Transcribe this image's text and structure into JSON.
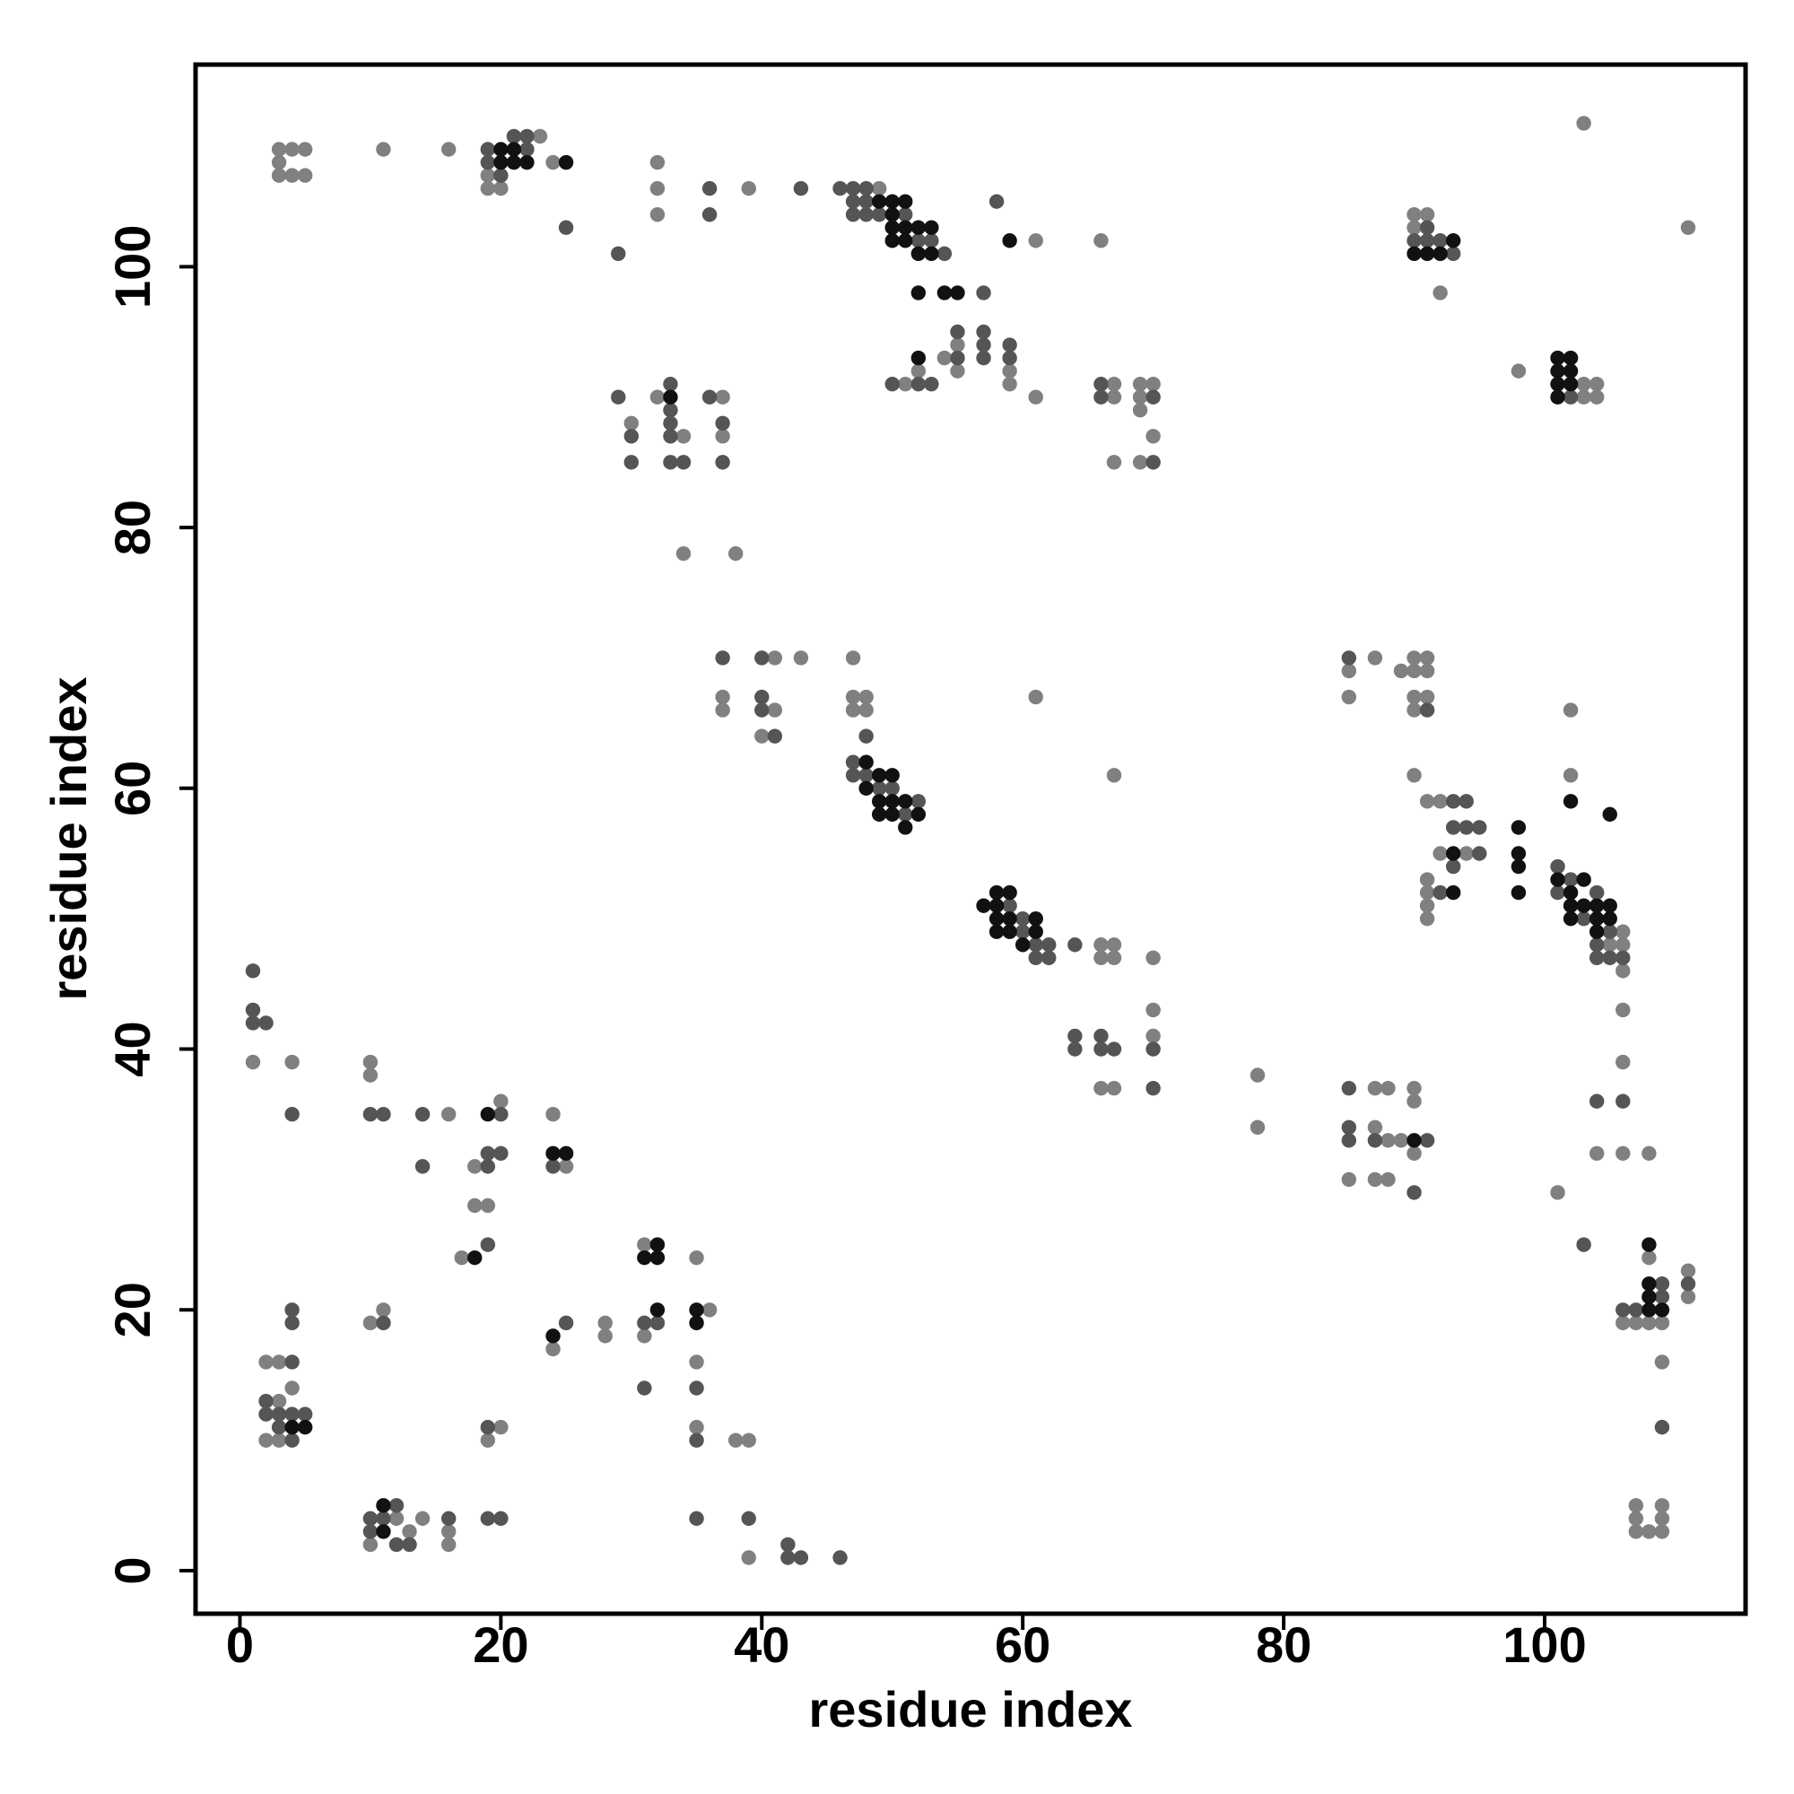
{
  "chart_data": {
    "type": "scatter",
    "x_label": "residue index",
    "y_label": "residue index",
    "xlim": [
      -3.4,
      115.4
    ],
    "ylim": [
      -3.3,
      115.5
    ],
    "xticks": [
      0,
      20,
      40,
      60,
      80,
      100
    ],
    "yticks": [
      0,
      20,
      40,
      60,
      80,
      100
    ],
    "grid": false,
    "series": [
      {
        "color": "#808080",
        "x": [
          3,
          4,
          5,
          3,
          3,
          4,
          5,
          11,
          16,
          19,
          19,
          20,
          23,
          24,
          32,
          32,
          32,
          39,
          49,
          61,
          66,
          54,
          55,
          55,
          59,
          59,
          52,
          51,
          61,
          67,
          67,
          69,
          69,
          69,
          70,
          70,
          67,
          69,
          30,
          32,
          34,
          37,
          37,
          34,
          38,
          90,
          90,
          91,
          92,
          103,
          111,
          98,
          103,
          103,
          104,
          104,
          37,
          37,
          40,
          41,
          41,
          43,
          47,
          47,
          47,
          48,
          48,
          61,
          67,
          66,
          66,
          67,
          67,
          70,
          66,
          67,
          70,
          70,
          78,
          78,
          85,
          85,
          87,
          89,
          90,
          90,
          90,
          90,
          91,
          91,
          91,
          90,
          91,
          92,
          94,
          92,
          91,
          91,
          91,
          91,
          102,
          102,
          105,
          106,
          106,
          106,
          106,
          106,
          104,
          106,
          108,
          85,
          87,
          87,
          87,
          88,
          88,
          88,
          89,
          90,
          90,
          90,
          1,
          4,
          10,
          10,
          16,
          18,
          20,
          18,
          19,
          17,
          24,
          25,
          31,
          35,
          36,
          31,
          35,
          35,
          38,
          39,
          39,
          24,
          28,
          28,
          10,
          11,
          2,
          3,
          3,
          4,
          2,
          3,
          20,
          19,
          12,
          13,
          10,
          14,
          16,
          16,
          101,
          108,
          106,
          107,
          108,
          109,
          111,
          111,
          109,
          107,
          107,
          107,
          108,
          109,
          109,
          109
        ],
        "y": [
          109,
          109,
          109,
          108,
          107,
          107,
          107,
          109,
          109,
          107,
          106,
          106,
          110,
          108,
          108,
          106,
          104,
          106,
          106,
          102,
          102,
          93,
          94,
          92,
          92,
          91,
          92,
          91,
          90,
          91,
          90,
          91,
          90,
          89,
          91,
          87,
          85,
          85,
          88,
          90,
          87,
          90,
          87,
          78,
          78,
          104,
          103,
          104,
          98,
          111,
          103,
          92,
          91,
          90,
          91,
          90,
          67,
          66,
          64,
          70,
          66,
          70,
          70,
          67,
          66,
          67,
          66,
          67,
          61,
          48,
          47,
          48,
          47,
          47,
          37,
          37,
          43,
          41,
          38,
          34,
          69,
          67,
          70,
          69,
          70,
          69,
          67,
          66,
          70,
          69,
          67,
          61,
          59,
          59,
          55,
          55,
          53,
          52,
          51,
          50,
          66,
          61,
          48,
          49,
          48,
          46,
          43,
          39,
          32,
          32,
          32,
          30,
          37,
          34,
          30,
          37,
          33,
          30,
          33,
          37,
          36,
          32,
          39,
          39,
          39,
          38,
          35,
          31,
          36,
          28,
          28,
          24,
          35,
          31,
          25,
          24,
          20,
          18,
          16,
          11,
          10,
          10,
          1,
          17,
          19,
          18,
          19,
          20,
          16,
          16,
          13,
          14,
          10,
          10,
          11,
          10,
          4,
          3,
          2,
          4,
          3,
          2,
          29,
          24,
          19,
          19,
          19,
          19,
          23,
          21,
          16,
          5,
          4,
          3,
          3,
          5,
          4,
          3
        ]
      },
      {
        "color": "#555555",
        "x": [
          19,
          19,
          20,
          21,
          22,
          22,
          25,
          29,
          36,
          36,
          43,
          46,
          47,
          47,
          47,
          48,
          48,
          48,
          49,
          51,
          52,
          53,
          54,
          58,
          57,
          55,
          55,
          57,
          57,
          57,
          59,
          59,
          52,
          50,
          53,
          66,
          66,
          70,
          70,
          29,
          30,
          30,
          33,
          33,
          33,
          33,
          33,
          34,
          36,
          37,
          37,
          90,
          91,
          91,
          92,
          93,
          102,
          37,
          40,
          40,
          40,
          41,
          48,
          47,
          47,
          48,
          49,
          50,
          51,
          52,
          59,
          60,
          60,
          61,
          61,
          62,
          62,
          64,
          64,
          64,
          66,
          66,
          67,
          70,
          70,
          85,
          91,
          93,
          94,
          93,
          94,
          95,
          95,
          93,
          92,
          101,
          101,
          102,
          103,
          104,
          104,
          104,
          105,
          105,
          106,
          106,
          104,
          85,
          85,
          85,
          87,
          90,
          91,
          1,
          1,
          1,
          2,
          4,
          10,
          11,
          14,
          14,
          20,
          19,
          20,
          19,
          19,
          24,
          31,
          32,
          31,
          35,
          35,
          35,
          39,
          42,
          42,
          43,
          46,
          25,
          4,
          4,
          11,
          4,
          2,
          2,
          3,
          4,
          5,
          3,
          4,
          19,
          10,
          12,
          10,
          11,
          12,
          13,
          16,
          19,
          20,
          103,
          106,
          107,
          109,
          109,
          111,
          109
        ],
        "y": [
          109,
          108,
          107,
          110,
          110,
          109,
          103,
          101,
          106,
          104,
          106,
          106,
          106,
          105,
          104,
          106,
          105,
          104,
          104,
          104,
          102,
          102,
          101,
          105,
          98,
          95,
          93,
          95,
          94,
          93,
          94,
          93,
          91,
          91,
          91,
          91,
          90,
          90,
          85,
          90,
          87,
          85,
          91,
          89,
          88,
          87,
          85,
          85,
          90,
          88,
          85,
          102,
          103,
          102,
          102,
          101,
          90,
          70,
          70,
          67,
          66,
          64,
          64,
          62,
          61,
          61,
          60,
          60,
          58,
          59,
          51,
          50,
          49,
          48,
          47,
          48,
          47,
          48,
          41,
          40,
          41,
          40,
          40,
          40,
          37,
          70,
          66,
          59,
          59,
          57,
          57,
          57,
          55,
          54,
          52,
          54,
          52,
          53,
          50,
          52,
          48,
          47,
          49,
          47,
          47,
          36,
          36,
          37,
          34,
          33,
          33,
          29,
          33,
          46,
          43,
          42,
          42,
          35,
          35,
          35,
          35,
          31,
          35,
          32,
          32,
          31,
          25,
          31,
          19,
          19,
          14,
          14,
          10,
          4,
          4,
          2,
          1,
          1,
          1,
          19,
          20,
          19,
          19,
          16,
          13,
          12,
          12,
          12,
          12,
          11,
          10,
          11,
          4,
          5,
          3,
          4,
          2,
          2,
          4,
          4,
          4,
          25,
          20,
          20,
          21,
          22,
          22,
          11
        ]
      },
      {
        "color": "#111111",
        "x": [
          20,
          20,
          21,
          21,
          22,
          25,
          49,
          50,
          50,
          50,
          50,
          51,
          51,
          51,
          52,
          52,
          53,
          53,
          59,
          52,
          54,
          55,
          52,
          33,
          90,
          91,
          92,
          93,
          101,
          101,
          101,
          101,
          102,
          102,
          102,
          48,
          48,
          49,
          49,
          49,
          50,
          50,
          50,
          51,
          51,
          52,
          57,
          58,
          58,
          58,
          58,
          59,
          59,
          59,
          60,
          61,
          61,
          93,
          93,
          98,
          98,
          98,
          98,
          102,
          105,
          101,
          102,
          102,
          102,
          103,
          103,
          104,
          104,
          104,
          105,
          105,
          90,
          19,
          18,
          24,
          25,
          32,
          31,
          32,
          32,
          35,
          35,
          24,
          4,
          5,
          11,
          11,
          108,
          108,
          109,
          108,
          108
        ],
        "y": [
          109,
          108,
          109,
          108,
          108,
          108,
          105,
          105,
          104,
          103,
          102,
          105,
          103,
          102,
          103,
          101,
          103,
          101,
          102,
          98,
          98,
          98,
          93,
          90,
          101,
          101,
          101,
          102,
          93,
          92,
          91,
          90,
          93,
          92,
          91,
          62,
          60,
          61,
          59,
          58,
          61,
          59,
          58,
          59,
          57,
          58,
          51,
          52,
          51,
          50,
          49,
          52,
          50,
          49,
          48,
          50,
          49,
          55,
          52,
          57,
          55,
          54,
          52,
          59,
          58,
          53,
          52,
          51,
          50,
          53,
          51,
          51,
          50,
          49,
          51,
          50,
          33,
          35,
          24,
          32,
          32,
          25,
          24,
          24,
          20,
          20,
          19,
          18,
          11,
          11,
          5,
          3,
          25,
          20,
          20,
          21,
          22
        ]
      }
    ]
  }
}
